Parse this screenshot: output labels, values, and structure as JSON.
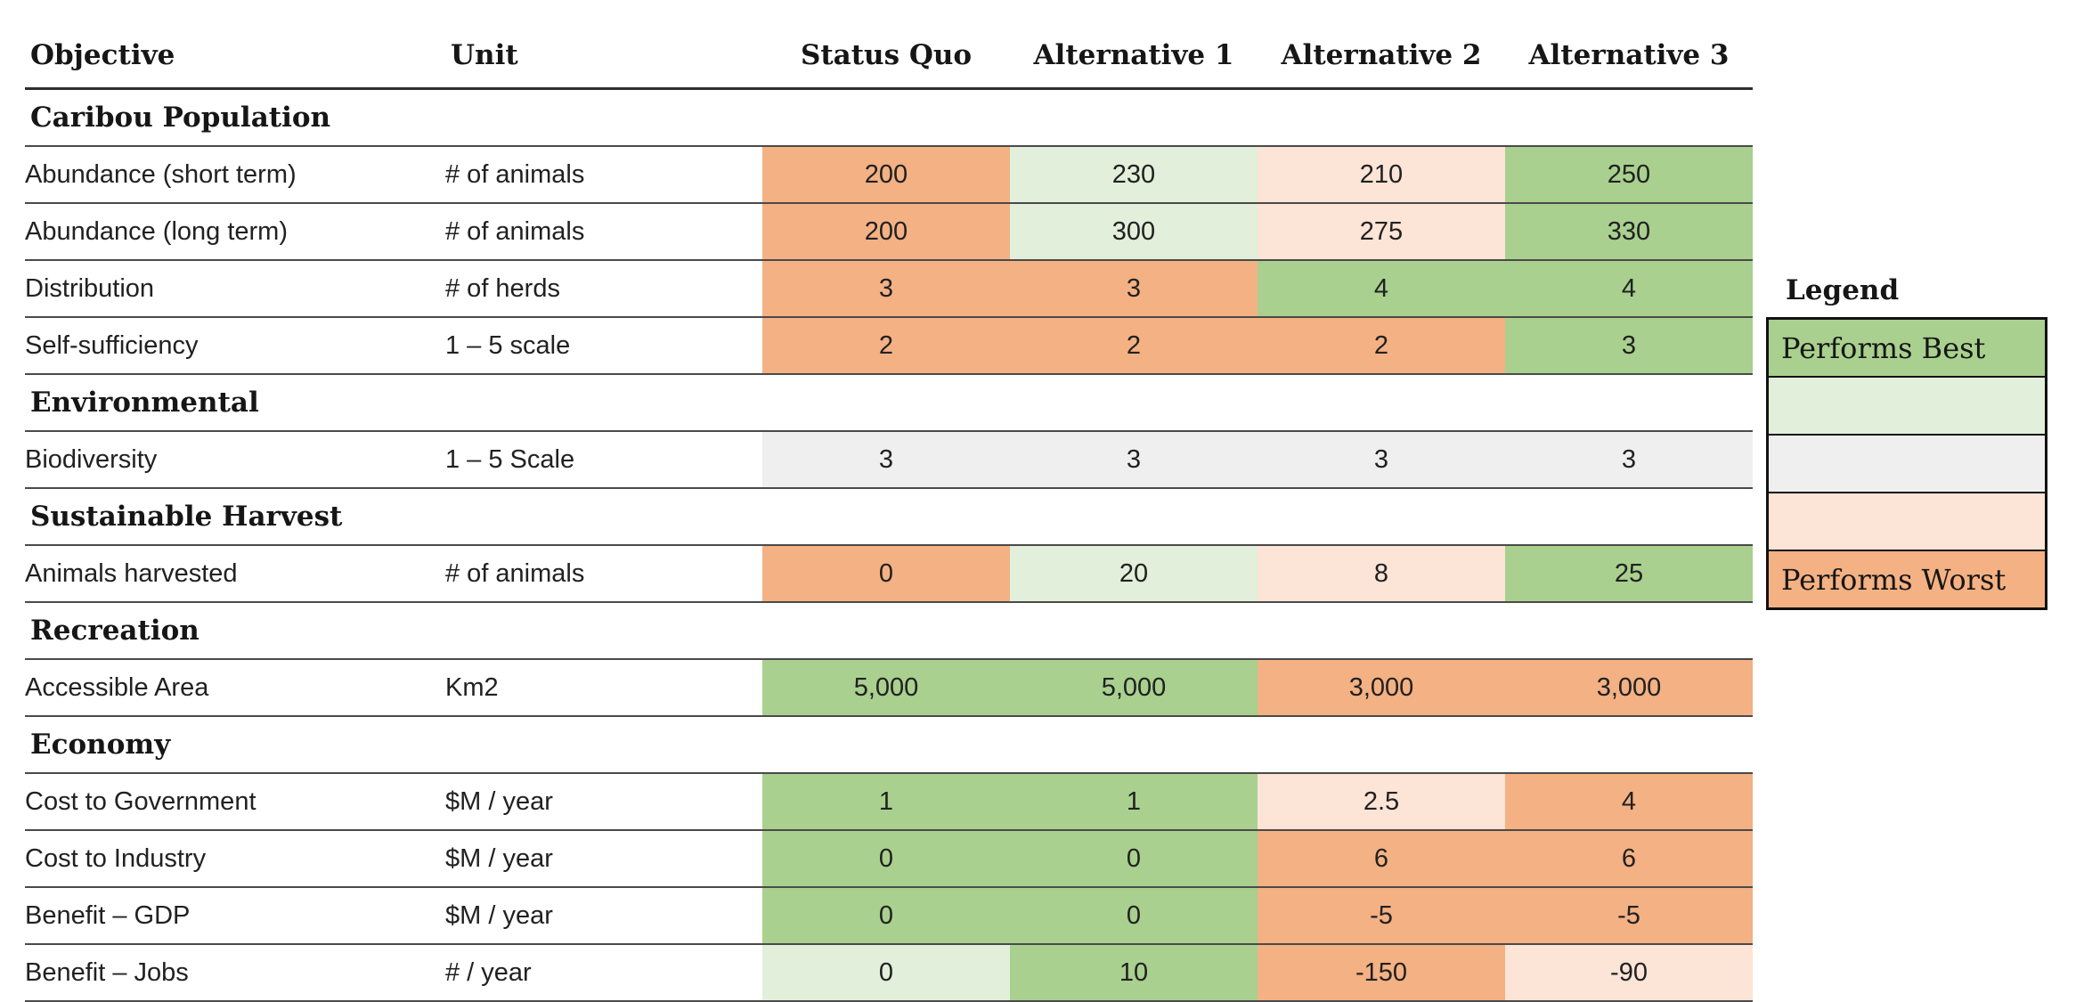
{
  "table": {
    "columns": [
      "Objective",
      "Unit",
      "Status Quo",
      "Alternative 1",
      "Alternative 2",
      "Alternative 3"
    ],
    "rows": [
      {
        "type": "section",
        "label": "Caribou Population"
      },
      {
        "type": "data",
        "label": "Abundance (short term)",
        "unit": "# of animals",
        "values": [
          "200",
          "230",
          "210",
          "250"
        ],
        "ratings": [
          "worst",
          "good",
          "poor",
          "best"
        ]
      },
      {
        "type": "data",
        "label": "Abundance (long term)",
        "unit": "# of animals",
        "values": [
          "200",
          "300",
          "275",
          "330"
        ],
        "ratings": [
          "worst",
          "good",
          "poor",
          "best"
        ]
      },
      {
        "type": "data",
        "label": "Distribution",
        "unit": "# of herds",
        "values": [
          "3",
          "3",
          "4",
          "4"
        ],
        "ratings": [
          "worst",
          "worst",
          "best",
          "best"
        ]
      },
      {
        "type": "data",
        "label": "Self-sufficiency",
        "unit": "1 – 5 scale",
        "values": [
          "2",
          "2",
          "2",
          "3"
        ],
        "ratings": [
          "worst",
          "worst",
          "worst",
          "best"
        ]
      },
      {
        "type": "section",
        "label": "Environmental"
      },
      {
        "type": "data",
        "label": "Biodiversity",
        "unit": "1 – 5 Scale",
        "values": [
          "3",
          "3",
          "3",
          "3"
        ],
        "ratings": [
          "neutral",
          "neutral",
          "neutral",
          "neutral"
        ]
      },
      {
        "type": "section",
        "label": "Sustainable Harvest"
      },
      {
        "type": "data",
        "label": "Animals harvested",
        "unit": "# of animals",
        "values": [
          "0",
          "20",
          "8",
          "25"
        ],
        "ratings": [
          "worst",
          "good",
          "poor",
          "best"
        ]
      },
      {
        "type": "section",
        "label": "Recreation"
      },
      {
        "type": "data",
        "label": "Accessible Area",
        "unit": "Km2",
        "values": [
          "5,000",
          "5,000",
          "3,000",
          "3,000"
        ],
        "ratings": [
          "best",
          "best",
          "worst",
          "worst"
        ]
      },
      {
        "type": "section",
        "label": "Economy"
      },
      {
        "type": "data",
        "label": "Cost to Government",
        "unit": "$M / year",
        "values": [
          "1",
          "1",
          "2.5",
          "4"
        ],
        "ratings": [
          "best",
          "best",
          "poor",
          "worst"
        ]
      },
      {
        "type": "data",
        "label": "Cost to Industry",
        "unit": "$M / year",
        "values": [
          "0",
          "0",
          "6",
          "6"
        ],
        "ratings": [
          "best",
          "best",
          "worst",
          "worst"
        ]
      },
      {
        "type": "data",
        "label": "Benefit – GDP",
        "unit": "$M / year",
        "values": [
          "0",
          "0",
          "-5",
          "-5"
        ],
        "ratings": [
          "best",
          "best",
          "worst",
          "worst"
        ]
      },
      {
        "type": "data",
        "label": "Benefit – Jobs",
        "unit": "# / year",
        "values": [
          "0",
          "10",
          "-150",
          "-90"
        ],
        "ratings": [
          "good",
          "best",
          "worst",
          "poor"
        ]
      }
    ]
  },
  "legend": {
    "title": "Legend",
    "items": [
      {
        "label": "Performs Best",
        "rating": "best"
      },
      {
        "label": "",
        "rating": "good"
      },
      {
        "label": "",
        "rating": "neutral"
      },
      {
        "label": "",
        "rating": "poor"
      },
      {
        "label": "Performs Worst",
        "rating": "worst"
      }
    ]
  },
  "palette": {
    "best": "#A9D08E",
    "good": "#E2EFDA",
    "neutral": "#EFEFEF",
    "poor": "#FCE4D6",
    "worst": "#F4B183",
    "row_line": "#4A4A4A",
    "header_line": "#2E2E2E",
    "legend_border": "#111111",
    "text": "#212121"
  }
}
